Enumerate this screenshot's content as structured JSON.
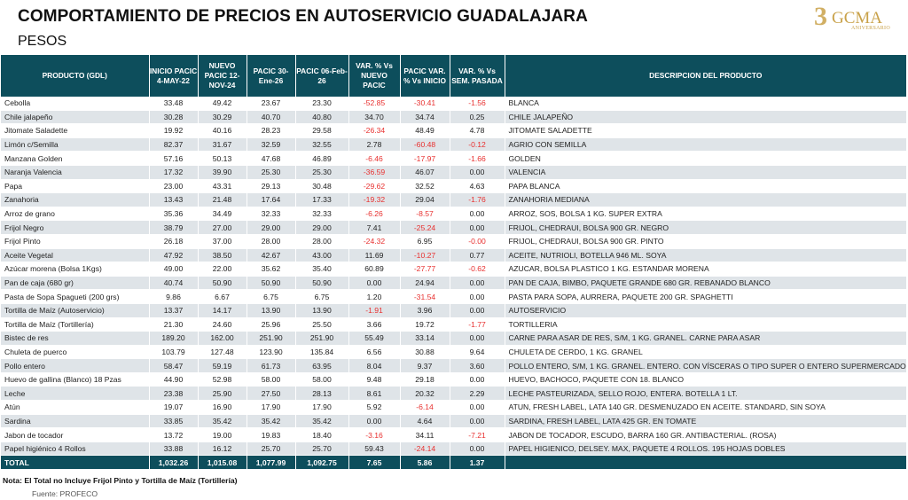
{
  "header": {
    "title": "COMPORTAMIENTO DE PRECIOS EN AUTOSERVICIO GUADALAJARA",
    "subtitle": "PESOS",
    "logo_text": "3OGCMA ANIVERSARIO"
  },
  "colors": {
    "header_bg": "#0d4e5c",
    "negative": "#e8302f",
    "row_alt": "#dfe4e8"
  },
  "table": {
    "columns": [
      "PRODUCTO (GDL)",
      "INICIO PACIC 4-MAY-22",
      "NUEVO PACIC 12-NOV-24",
      "PACIC 30-Ene-26",
      "PACIC 06-Feb-26",
      "VAR. % Vs NUEVO PACIC",
      "PACIC VAR. % Vs INICIO",
      "VAR. % Vs SEM. PASADA",
      "DESCRIPCION DEL PRODUCTO"
    ],
    "rows": [
      [
        "Cebolla",
        "33.48",
        "49.42",
        "23.67",
        "23.30",
        "-52.85",
        "-30.41",
        "-1.56",
        "BLANCA"
      ],
      [
        "Chile jalapeño",
        "30.28",
        "30.29",
        "40.70",
        "40.80",
        "34.70",
        "34.74",
        "0.25",
        "CHILE JALAPEÑO"
      ],
      [
        "Jitomate Saladette",
        "19.92",
        "40.16",
        "28.23",
        "29.58",
        "-26.34",
        "48.49",
        "4.78",
        "JITOMATE SALADETTE"
      ],
      [
        "Limón c/Semilla",
        "82.37",
        "31.67",
        "32.59",
        "32.55",
        "2.78",
        "-60.48",
        "-0.12",
        "AGRIO CON SEMILLA"
      ],
      [
        "Manzana Golden",
        "57.16",
        "50.13",
        "47.68",
        "46.89",
        "-6.46",
        "-17.97",
        "-1.66",
        "GOLDEN"
      ],
      [
        "Naranja Valencia",
        "17.32",
        "39.90",
        "25.30",
        "25.30",
        "-36.59",
        "46.07",
        "0.00",
        "VALENCIA"
      ],
      [
        "Papa",
        "23.00",
        "43.31",
        "29.13",
        "30.48",
        "-29.62",
        "32.52",
        "4.63",
        "PAPA BLANCA"
      ],
      [
        "Zanahoria",
        "13.43",
        "21.48",
        "17.64",
        "17.33",
        "-19.32",
        "29.04",
        "-1.76",
        "ZANAHORIA MEDIANA"
      ],
      [
        "Arroz de grano",
        "35.36",
        "34.49",
        "32.33",
        "32.33",
        "-6.26",
        "-8.57",
        "0.00",
        "ARROZ, SOS, BOLSA 1 KG. SUPER EXTRA"
      ],
      [
        "Frijol Negro",
        "38.79",
        "27.00",
        "29.00",
        "29.00",
        "7.41",
        "-25.24",
        "0.00",
        "FRIJOL, CHEDRAUI, BOLSA 900 GR. NEGRO"
      ],
      [
        "Frijol Pinto",
        "26.18",
        "37.00",
        "28.00",
        "28.00",
        "-24.32",
        "6.95",
        "-0.00",
        "FRIJOL, CHEDRAUI, BOLSA 900 GR. PINTO"
      ],
      [
        "Aceite Vegetal",
        "47.92",
        "38.50",
        "42.67",
        "43.00",
        "11.69",
        "-10.27",
        "0.77",
        "ACEITE, NUTRIOLI, BOTELLA 946 ML. SOYA"
      ],
      [
        "Azúcar morena (Bolsa 1Kgs)",
        "49.00",
        "22.00",
        "35.62",
        "35.40",
        "60.89",
        "-27.77",
        "-0.62",
        "AZUCAR, BOLSA PLASTICO 1 KG. ESTANDAR MORENA"
      ],
      [
        "Pan de caja (680 gr)",
        "40.74",
        "50.90",
        "50.90",
        "50.90",
        "0.00",
        "24.94",
        "0.00",
        "PAN DE CAJA, BIMBO, PAQUETE GRANDE 680 GR. REBANADO BLANCO"
      ],
      [
        "Pasta de Sopa Spagueti (200 grs)",
        "9.86",
        "6.67",
        "6.75",
        "6.75",
        "1.20",
        "-31.54",
        "0.00",
        "PASTA PARA SOPA, AURRERA, PAQUETE 200 GR. SPAGHETTI"
      ],
      [
        "Tortilla de Maíz (Autoservicio)",
        "13.37",
        "14.17",
        "13.90",
        "13.90",
        "-1.91",
        "3.96",
        "0.00",
        "AUTOSERVICIO"
      ],
      [
        "Tortilla de Maíz (Tortillería)",
        "21.30",
        "24.60",
        "25.96",
        "25.50",
        "3.66",
        "19.72",
        "-1.77",
        "TORTILLERIA"
      ],
      [
        "Bistec de res",
        "189.20",
        "162.00",
        "251.90",
        "251.90",
        "55.49",
        "33.14",
        "0.00",
        "CARNE PARA ASAR DE RES, S/M, 1 KG. GRANEL. CARNE PARA ASAR"
      ],
      [
        "Chuleta de puerco",
        "103.79",
        "127.48",
        "123.90",
        "135.84",
        "6.56",
        "30.88",
        "9.64",
        "CHULETA DE CERDO, 1 KG. GRANEL"
      ],
      [
        "Pollo entero",
        "58.47",
        "59.19",
        "61.73",
        "63.95",
        "8.04",
        "9.37",
        "3.60",
        "POLLO ENTERO, S/M, 1 KG. GRANEL. ENTERO. CON VÍSCERAS O TIPO SUPER O ENTERO SUPERMERCADO"
      ],
      [
        "Huevo de gallina (Blanco) 18 Pzas",
        "44.90",
        "52.98",
        "58.00",
        "58.00",
        "9.48",
        "29.18",
        "0.00",
        "HUEVO, BACHOCO, PAQUETE CON 18. BLANCO"
      ],
      [
        "Leche",
        "23.38",
        "25.90",
        "27.50",
        "28.13",
        "8.61",
        "20.32",
        "2.29",
        "LECHE PASTEURIZADA, SELLO ROJO, ENTERA. BOTELLA 1 LT."
      ],
      [
        "Atún",
        "19.07",
        "16.90",
        "17.90",
        "17.90",
        "5.92",
        "-6.14",
        "0.00",
        "ATUN, FRESH LABEL, LATA 140 GR. DESMENUZADO EN ACEITE. STANDARD, SIN SOYA"
      ],
      [
        "Sardina",
        "33.85",
        "35.42",
        "35.42",
        "35.42",
        "0.00",
        "4.64",
        "0.00",
        "SARDINA, FRESH LABEL, LATA 425 GR. EN TOMATE"
      ],
      [
        "Jabon de tocador",
        "13.72",
        "19.00",
        "19.83",
        "18.40",
        "-3.16",
        "34.11",
        "-7.21",
        "JABON DE TOCADOR, ESCUDO, BARRA 160 GR. ANTIBACTERIAL. (ROSA)"
      ],
      [
        "Papel higiénico 4 Rollos",
        "33.88",
        "16.12",
        "25.70",
        "25.70",
        "59.43",
        "-24.14",
        "0.00",
        "PAPEL HIGIENICO, DELSEY. MAX, PAQUETE 4 ROLLOS. 195 HOJAS DOBLES"
      ]
    ],
    "total": [
      "TOTAL",
      "1,032.26",
      "1,015.08",
      "1,077.99",
      "1,092.75",
      "7.65",
      "5.86",
      "1.37",
      ""
    ]
  },
  "footer": {
    "note": "Nota: El Total no Incluye Frijol Pinto y Tortilla de Maíz (Tortillería)",
    "source": "Fuente: PROFECO"
  }
}
